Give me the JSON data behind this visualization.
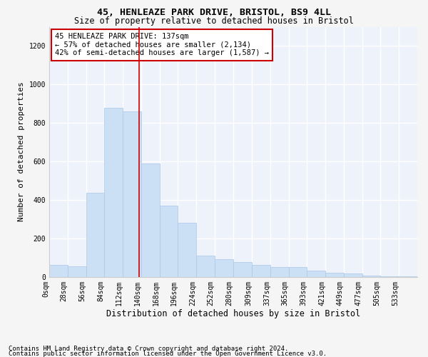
{
  "title1": "45, HENLEAZE PARK DRIVE, BRISTOL, BS9 4LL",
  "title2": "Size of property relative to detached houses in Bristol",
  "xlabel": "Distribution of detached houses by size in Bristol",
  "ylabel": "Number of detached properties",
  "bar_color": "#cce0f5",
  "bar_edge_color": "#aac8e8",
  "background_color": "#eef2fa",
  "grid_color": "#ffffff",
  "vline_color": "#cc0000",
  "annotation_box_color": "#cc0000",
  "bin_edges": [
    0,
    28,
    56,
    84,
    112,
    140,
    168,
    196,
    224,
    252,
    280,
    309,
    337,
    365,
    393,
    421,
    449,
    477,
    505,
    533,
    561
  ],
  "bar_heights": [
    60,
    55,
    435,
    880,
    860,
    590,
    370,
    280,
    110,
    90,
    75,
    60,
    50,
    50,
    30,
    20,
    18,
    5,
    2,
    2
  ],
  "property_size": 137,
  "annotation_lines": [
    "45 HENLEAZE PARK DRIVE: 137sqm",
    "← 57% of detached houses are smaller (2,134)",
    "42% of semi-detached houses are larger (1,587) →"
  ],
  "footer1": "Contains HM Land Registry data © Crown copyright and database right 2024.",
  "footer2": "Contains public sector information licensed under the Open Government Licence v3.0.",
  "ylim": [
    0,
    1300
  ],
  "yticks": [
    0,
    200,
    400,
    600,
    800,
    1000,
    1200
  ],
  "title1_fontsize": 9.5,
  "title2_fontsize": 8.5,
  "xlabel_fontsize": 8.5,
  "ylabel_fontsize": 8,
  "tick_fontsize": 7,
  "annotation_fontsize": 7.5,
  "footer_fontsize": 6.5
}
